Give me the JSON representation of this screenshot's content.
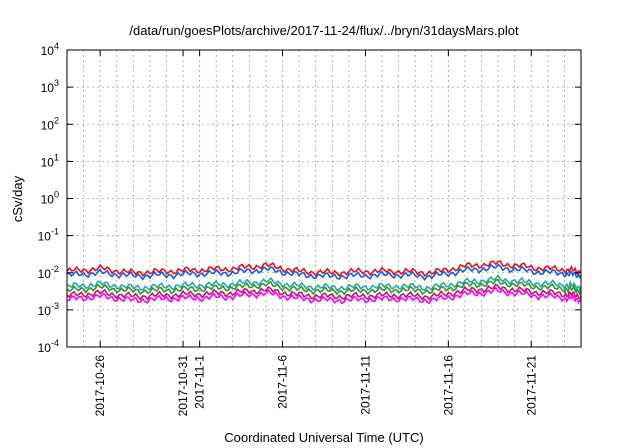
{
  "chart_data": {
    "type": "line",
    "title": "/data/run/goesPlots/archive/2017-11-24/flux/../bryn/31daysMars.plot",
    "xlabel": "Coordinated Universal Time (UTC)",
    "ylabel": "cSv/day",
    "y_scale": "log",
    "ylim": [
      0.0001,
      10000
    ],
    "y_ticks": [
      {
        "value": 0.0001,
        "base": "10",
        "exp": "-4"
      },
      {
        "value": 0.001,
        "base": "10",
        "exp": "-3"
      },
      {
        "value": 0.01,
        "base": "10",
        "exp": "-2"
      },
      {
        "value": 0.1,
        "base": "10",
        "exp": "-1"
      },
      {
        "value": 1,
        "base": "10",
        "exp": "0"
      },
      {
        "value": 10,
        "base": "10",
        "exp": "1"
      },
      {
        "value": 100,
        "base": "10",
        "exp": "2"
      },
      {
        "value": 1000,
        "base": "10",
        "exp": "3"
      },
      {
        "value": 10000,
        "base": "10",
        "exp": "4"
      }
    ],
    "x_scale": "time",
    "xlim": [
      "2017-10-24",
      "2017-11-24"
    ],
    "x_ticks": [
      {
        "date": "2017-10-26",
        "lines": [
          "2017-10-26"
        ]
      },
      {
        "date": "2017-10-31",
        "lines": [
          "2017-10-31"
        ]
      },
      {
        "date": "2017-11-01",
        "lines": [
          "2017-11-1"
        ]
      },
      {
        "date": "2017-11-06",
        "lines": [
          "2017-11-6"
        ]
      },
      {
        "date": "2017-11-11",
        "lines": [
          "2017-11-11"
        ]
      },
      {
        "date": "2017-11-16",
        "lines": [
          "2017-11-16"
        ]
      },
      {
        "date": "2017-11-21",
        "lines": [
          "2017-11-21"
        ]
      }
    ],
    "grid": true,
    "x": [
      "2017-10-24",
      "2017-10-26",
      "2017-10-28",
      "2017-10-30",
      "2017-11-01",
      "2017-11-03",
      "2017-11-05",
      "2017-11-07",
      "2017-11-09",
      "2017-11-11",
      "2017-11-13",
      "2017-11-15",
      "2017-11-17",
      "2017-11-19",
      "2017-11-21",
      "2017-11-23",
      "2017-11-24"
    ],
    "series": [
      {
        "color": "#e8101a",
        "values": [
          0.011,
          0.013,
          0.01,
          0.011,
          0.012,
          0.013,
          0.016,
          0.011,
          0.01,
          0.011,
          0.011,
          0.01,
          0.015,
          0.018,
          0.014,
          0.012,
          0.011
        ]
      },
      {
        "color": "#1a5ce6",
        "values": [
          0.0085,
          0.01,
          0.0082,
          0.0087,
          0.0095,
          0.01,
          0.0125,
          0.0088,
          0.008,
          0.0085,
          0.0088,
          0.008,
          0.0115,
          0.014,
          0.011,
          0.0095,
          0.0085
        ]
      },
      {
        "color": "#2aa8a0",
        "values": [
          0.0042,
          0.005,
          0.004,
          0.0043,
          0.0047,
          0.005,
          0.006,
          0.0044,
          0.004,
          0.0042,
          0.0044,
          0.004,
          0.0056,
          0.0068,
          0.0054,
          0.0047,
          0.0042
        ]
      },
      {
        "color": "#2e9a2e",
        "values": [
          0.0033,
          0.004,
          0.0032,
          0.0034,
          0.0037,
          0.004,
          0.0048,
          0.0035,
          0.0032,
          0.0033,
          0.0035,
          0.0032,
          0.0045,
          0.0055,
          0.0043,
          0.0037,
          0.0033
        ]
      },
      {
        "color": "#c41474",
        "values": [
          0.0024,
          0.0029,
          0.0023,
          0.0025,
          0.0027,
          0.0029,
          0.0035,
          0.0025,
          0.0023,
          0.0024,
          0.0025,
          0.0023,
          0.0033,
          0.004,
          0.0031,
          0.0027,
          0.0024
        ]
      },
      {
        "color": "#ff00ff",
        "values": [
          0.0019,
          0.0023,
          0.0018,
          0.002,
          0.0021,
          0.0023,
          0.0028,
          0.002,
          0.0018,
          0.0019,
          0.002,
          0.0018,
          0.0026,
          0.0032,
          0.0025,
          0.0021,
          0.0019
        ]
      }
    ]
  }
}
